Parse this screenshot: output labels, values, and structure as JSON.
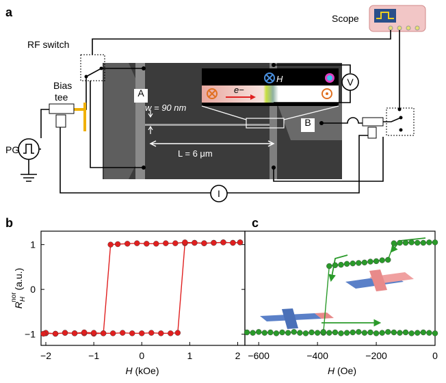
{
  "panel_labels": [
    "a",
    "b",
    "c"
  ],
  "diagram": {
    "scope": "Scope",
    "rf_switch": "RF switch",
    "bias_tee": [
      "Bias",
      "tee"
    ],
    "pg": "PG",
    "pad_a": "A",
    "pad_b": "B",
    "width": "w = 90 nm",
    "length": "L = 6 μm",
    "field": "H",
    "electron": "e−",
    "voltmeter": "V",
    "ammeter": "I"
  },
  "chart_data": [
    {
      "type": "line",
      "xlabel": {
        "symbol": "H",
        "unit": "(kOe)"
      },
      "ylabel": {
        "symbol": "R",
        "sub": "H",
        "sup": "nor",
        "unit": "(a.u.)"
      },
      "xlim": [
        -2.1,
        2.15
      ],
      "ylim": [
        -1.25,
        1.3
      ],
      "xticks": [
        {
          "value": -2,
          "label": "−2"
        },
        {
          "value": -1,
          "label": "−1"
        },
        0,
        1,
        2
      ],
      "yticks": [
        {
          "value": -1,
          "label": "−1"
        },
        0,
        1
      ],
      "series": [
        {
          "color": "#e01f1f",
          "x": [
            -2.0,
            -1.8,
            -1.6,
            -1.4,
            -1.2,
            -1.0,
            -0.8,
            -0.6,
            -0.4,
            -0.2,
            0.0,
            0.2,
            0.4,
            0.6,
            0.75,
            0.9,
            1.1,
            1.3,
            1.5,
            1.7,
            1.9,
            2.05
          ],
          "values": [
            -0.98,
            -0.99,
            -0.97,
            -0.98,
            -0.98,
            -0.99,
            -0.98,
            -0.98,
            -0.97,
            -0.98,
            -0.98,
            -0.97,
            -0.98,
            -0.98,
            -0.97,
            1.03,
            1.04,
            1.03,
            1.04,
            1.05,
            1.04,
            1.05
          ]
        },
        {
          "color": "#e01f1f",
          "x": [
            2.05,
            1.9,
            1.7,
            1.5,
            1.3,
            1.1,
            0.9,
            0.7,
            0.5,
            0.3,
            0.1,
            -0.1,
            -0.3,
            -0.5,
            -0.65,
            -0.8,
            -1.0,
            -1.2,
            -1.4,
            -1.6,
            -1.8,
            -2.0,
            -2.05
          ],
          "values": [
            1.05,
            1.04,
            1.05,
            1.04,
            1.03,
            1.04,
            1.05,
            1.03,
            1.03,
            1.02,
            1.02,
            1.03,
            1.02,
            1.01,
            1.0,
            -0.98,
            -0.97,
            -0.96,
            -0.98,
            -0.97,
            -0.99,
            -0.97,
            -0.99
          ]
        }
      ]
    },
    {
      "type": "line",
      "xlabel": {
        "symbol": "H",
        "unit": "(Oe)"
      },
      "xlim": [
        -647,
        0
      ],
      "ylim": [
        -1.25,
        1.3
      ],
      "xticks": [
        {
          "value": -600,
          "label": "−600"
        },
        {
          "value": -400,
          "label": "−400"
        },
        {
          "value": -200,
          "label": "−200"
        },
        0
      ],
      "series": [
        {
          "color": "#2a9a2a",
          "x": [
            0,
            -20,
            -40,
            -60,
            -80,
            -100,
            -120,
            -140,
            -160,
            -180,
            -200,
            -220,
            -240,
            -260,
            -280,
            -300,
            -320,
            -340,
            -360,
            -380
          ],
          "values": [
            1.05,
            1.05,
            1.04,
            1.04,
            1.05,
            1.04,
            1.04,
            1.03,
            0.66,
            0.65,
            0.63,
            0.62,
            0.6,
            0.59,
            0.58,
            0.57,
            0.55,
            0.54,
            0.52,
            -0.97
          ]
        },
        {
          "color": "#2a9a2a",
          "x": [
            -640,
            -620,
            -600,
            -580,
            -560,
            -540,
            -520,
            -500,
            -480,
            -460,
            -440,
            -420,
            -400,
            -380,
            -360,
            -340,
            -320,
            -300,
            -280,
            -260,
            -240,
            -220,
            -200,
            -180,
            -160,
            -140,
            -120,
            -100,
            -80,
            -60,
            -40,
            -20,
            0
          ],
          "values": [
            -0.96,
            -0.97,
            -0.95,
            -0.97,
            -0.96,
            -0.98,
            -0.96,
            -0.97,
            -0.95,
            -0.97,
            -0.98,
            -0.96,
            -0.97,
            -0.95,
            -0.97,
            -0.96,
            -0.98,
            -0.97,
            -0.96,
            -0.95,
            -0.97,
            -0.96,
            -0.98,
            -0.97,
            -0.95,
            -0.96,
            -0.97,
            -0.96,
            -0.98,
            -0.97,
            -0.96,
            -0.97,
            -0.98
          ]
        }
      ]
    }
  ]
}
